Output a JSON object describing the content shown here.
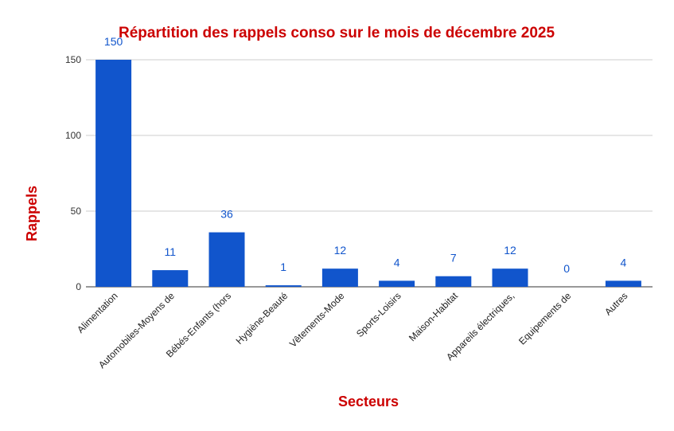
{
  "chart_data": {
    "type": "bar",
    "title": "Répartition des rappels conso sur le mois de décembre 2025",
    "xlabel": "Secteurs",
    "ylabel": "Rappels",
    "categories": [
      "Alimentation",
      "Automobiles-Moyens de",
      "Bébés-Enfants (hors",
      "Hygiène-Beauté",
      "Vêtements-Mode",
      "Sports-Loisirs",
      "Maison-Habitat",
      "Appareils électriques,",
      "Equipements de",
      "Autres"
    ],
    "values": [
      150,
      11,
      36,
      1,
      12,
      4,
      7,
      12,
      0,
      4
    ],
    "ylim": [
      0,
      150
    ],
    "yticks": [
      0,
      50,
      100,
      150
    ],
    "grid": true,
    "colors": {
      "bar": "#1155cc",
      "title": "#cc0000",
      "label": "#1155cc"
    }
  }
}
